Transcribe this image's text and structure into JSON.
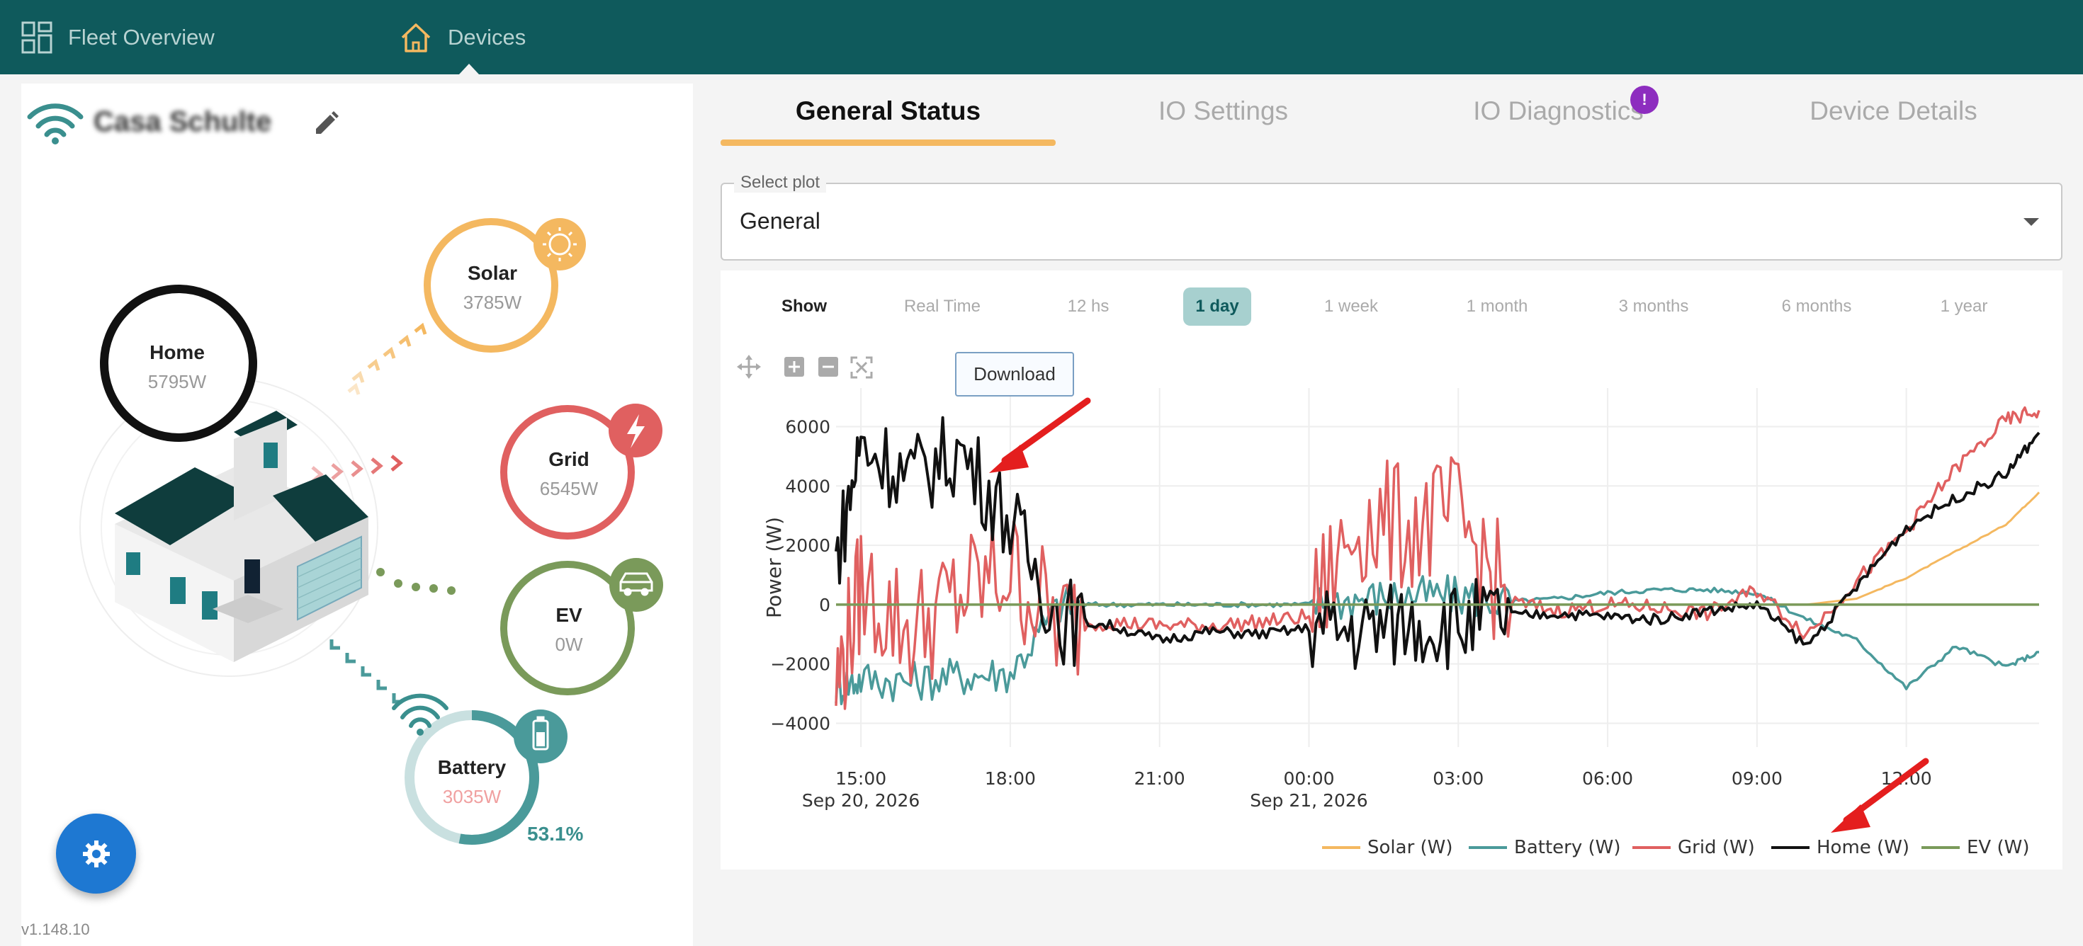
{
  "nav": {
    "items": [
      {
        "label": "Fleet Overview",
        "icon": "grid-icon"
      },
      {
        "label": "Devices",
        "icon": "home-icon"
      }
    ]
  },
  "site": {
    "title": "Casa Schulte",
    "version": "v1.148.10"
  },
  "energy_nodes": {
    "home": {
      "label": "Home",
      "value": "5795W"
    },
    "solar": {
      "label": "Solar",
      "value": "3785W"
    },
    "grid": {
      "label": "Grid",
      "value": "6545W"
    },
    "ev": {
      "label": "EV",
      "value": "0W"
    },
    "battery": {
      "label": "Battery",
      "value": "3035W",
      "soc": "53.1%",
      "soc_fraction": 0.531
    }
  },
  "tabs": [
    {
      "label": "General Status",
      "active": true
    },
    {
      "label": "IO Settings",
      "active": false
    },
    {
      "label": "IO Diagnostics",
      "active": false,
      "badge": "!"
    },
    {
      "label": "Device Details",
      "active": false
    }
  ],
  "select": {
    "legend": "Select plot",
    "value": "General"
  },
  "ranges": {
    "show_label": "Show",
    "options": [
      "Real Time",
      "12 hs",
      "1 day",
      "1 week",
      "1 month",
      "3 months",
      "6 months",
      "1 year"
    ],
    "active": "1 day"
  },
  "chart": {
    "download_label": "Download",
    "ylabel": "Power (W)",
    "y_ticks": [
      "6000",
      "4000",
      "2000",
      "0",
      "−2000",
      "−4000"
    ],
    "x_ticks": [
      {
        "line1": "15:00",
        "line2": "Sep 20, 2026"
      },
      {
        "line1": "18:00",
        "line2": ""
      },
      {
        "line1": "21:00",
        "line2": ""
      },
      {
        "line1": "00:00",
        "line2": "Sep 21, 2026"
      },
      {
        "line1": "03:00",
        "line2": ""
      },
      {
        "line1": "06:00",
        "line2": ""
      },
      {
        "line1": "09:00",
        "line2": ""
      },
      {
        "line1": "12:00",
        "line2": ""
      }
    ]
  },
  "colors": {
    "solar": "#f4b860",
    "battery": "#4a9a9a",
    "grid": "#e06060",
    "home": "#111111",
    "ev": "#7a9a5a",
    "topbar": "#0f5a5c"
  },
  "chart_data": {
    "type": "line",
    "xlabel": "",
    "ylabel": "Power (W)",
    "x_range": [
      "2026-09-20 14:30",
      "2026-09-21 14:40"
    ],
    "ylim": [
      -4800,
      7300
    ],
    "grid": true,
    "legend_position": "bottom-right",
    "x": [
      "2026-09-20 14:30",
      "2026-09-20 15:00",
      "2026-09-20 16:00",
      "2026-09-20 17:00",
      "2026-09-20 18:00",
      "2026-09-20 19:00",
      "2026-09-20 20:00",
      "2026-09-20 21:00",
      "2026-09-20 22:00",
      "2026-09-20 23:00",
      "2026-09-21 00:00",
      "2026-09-21 01:00",
      "2026-09-21 02:00",
      "2026-09-21 03:00",
      "2026-09-21 04:00",
      "2026-09-21 05:00",
      "2026-09-21 06:00",
      "2026-09-21 07:00",
      "2026-09-21 08:00",
      "2026-09-21 09:00",
      "2026-09-21 10:00",
      "2026-09-21 11:00",
      "2026-09-21 12:00",
      "2026-09-21 13:00",
      "2026-09-21 14:00",
      "2026-09-21 14:40"
    ],
    "series": [
      {
        "name": "Solar (W)",
        "values": [
          0,
          0,
          0,
          0,
          0,
          0,
          0,
          0,
          0,
          0,
          0,
          0,
          0,
          0,
          0,
          0,
          0,
          0,
          0,
          0,
          0,
          200,
          900,
          1800,
          2700,
          3785
        ]
      },
      {
        "name": "Battery (W)",
        "values": [
          -2800,
          -2500,
          -2600,
          -2400,
          -2300,
          0,
          0,
          0,
          0,
          0,
          0,
          200,
          300,
          300,
          100,
          200,
          400,
          500,
          500,
          400,
          -500,
          -1200,
          -2800,
          -1400,
          -2100,
          -1600
        ]
      },
      {
        "name": "Grid (W)",
        "values": [
          -2800,
          600,
          -900,
          300,
          1200,
          -700,
          -600,
          -700,
          -700,
          -600,
          -400,
          2800,
          2600,
          2900,
          100,
          -200,
          0,
          -100,
          -300,
          500,
          -1000,
          800,
          2500,
          4600,
          6200,
          6545
        ]
      },
      {
        "name": "Home (W)",
        "values": [
          1500,
          5400,
          4300,
          5200,
          2800,
          -500,
          -700,
          -1200,
          -900,
          -1000,
          -800,
          -900,
          -600,
          -700,
          -400,
          -300,
          -400,
          -500,
          -200,
          0,
          -1400,
          600,
          2600,
          3600,
          4400,
          5795
        ]
      },
      {
        "name": "EV (W)",
        "values": [
          0,
          0,
          0,
          0,
          0,
          0,
          0,
          0,
          0,
          0,
          0,
          0,
          0,
          0,
          0,
          0,
          0,
          0,
          0,
          0,
          0,
          0,
          0,
          0,
          0,
          0
        ]
      }
    ]
  }
}
